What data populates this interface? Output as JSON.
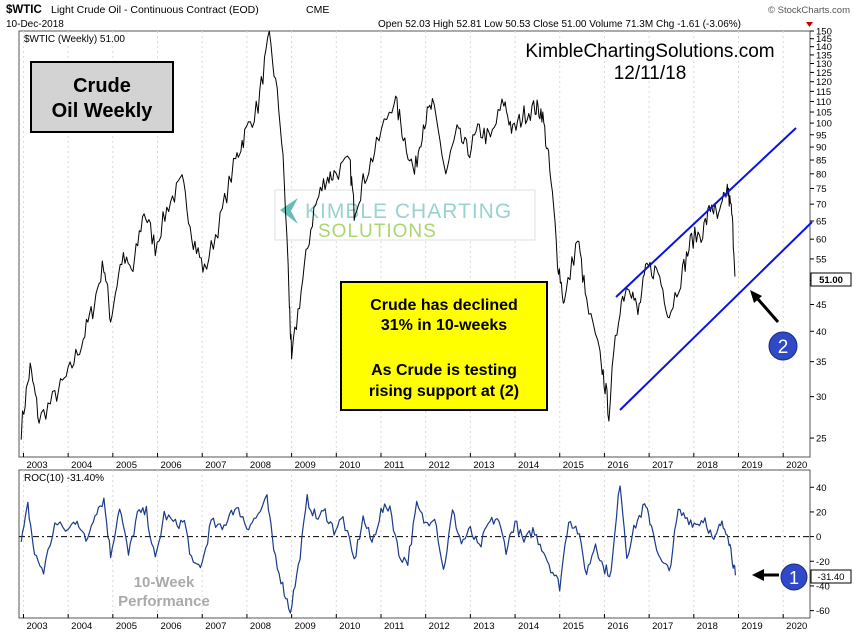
{
  "header": {
    "symbol": "$WTIC",
    "description": "Light Crude Oil - Continuous Contract (EOD)",
    "exchange": "CME",
    "date": "10-Dec-2018",
    "ohlc_text": "Open 52.03  High 52.81  Low 50.53  Close 51.00  Volume 71.3M  Chg -1.61 (-3.06%)",
    "credit": "© StockCharts.com"
  },
  "price_panel": {
    "legend": "$WTIC (Weekly) 51.00",
    "last_price_label": "51.00",
    "title_box": {
      "line1": "Crude",
      "line2": "Oil Weekly"
    },
    "site": "KimbleChartingSolutions.com",
    "site_date": "12/11/18",
    "watermark_line1": "KIMBLE CHARTING",
    "watermark_line2": "SOLUTIONS",
    "annotation": {
      "line1": "Crude has declined",
      "line2": "31% in 10-weeks",
      "line3": "As Crude is testing",
      "line4": "rising support at (2)"
    },
    "marker_label": "2"
  },
  "roc_panel": {
    "legend": "ROC(10) -31.40%",
    "last_value_label": "-31.40",
    "perf_line1": "10-Week",
    "perf_line2": "Performance",
    "marker_label": "1"
  },
  "colors": {
    "price_line": "#000000",
    "roc_line": "#1a3a8a",
    "channel": "#0a14e0",
    "annotation_bg": "#ffff00",
    "marker": "#2f49c8",
    "panel_border": "#555555"
  },
  "chart_data": [
    {
      "type": "line",
      "x_axis": "year",
      "x_ticks": [
        "2003",
        "2004",
        "2005",
        "2006",
        "2007",
        "2008",
        "2009",
        "2010",
        "2011",
        "2012",
        "2013",
        "2014",
        "2015",
        "2016",
        "2017",
        "2018",
        "2019",
        "2020"
      ],
      "y_scale": "log",
      "y_ticks": [
        25,
        30,
        35,
        40,
        45,
        50,
        55,
        60,
        65,
        70,
        75,
        80,
        85,
        90,
        95,
        100,
        105,
        110,
        115,
        120,
        125,
        130,
        135,
        140,
        145,
        150
      ],
      "ylim": [
        23,
        150
      ],
      "series": [
        {
          "points": [
            [
              2002.95,
              26
            ],
            [
              2003.15,
              34
            ],
            [
              2003.35,
              27
            ],
            [
              2003.7,
              30
            ],
            [
              2004.0,
              33
            ],
            [
              2004.3,
              38
            ],
            [
              2004.55,
              44
            ],
            [
              2004.8,
              54
            ],
            [
              2004.95,
              42
            ],
            [
              2005.2,
              55
            ],
            [
              2005.45,
              52
            ],
            [
              2005.7,
              68
            ],
            [
              2005.95,
              58
            ],
            [
              2006.25,
              70
            ],
            [
              2006.55,
              77
            ],
            [
              2006.8,
              60
            ],
            [
              2007.05,
              52
            ],
            [
              2007.4,
              65
            ],
            [
              2007.75,
              85
            ],
            [
              2007.95,
              95
            ],
            [
              2008.25,
              108
            ],
            [
              2008.5,
              145
            ],
            [
              2008.75,
              100
            ],
            [
              2008.95,
              45
            ],
            [
              2009.0,
              35
            ],
            [
              2009.25,
              50
            ],
            [
              2009.5,
              68
            ],
            [
              2009.75,
              78
            ],
            [
              2009.95,
              80
            ],
            [
              2010.3,
              84
            ],
            [
              2010.4,
              68
            ],
            [
              2010.6,
              77
            ],
            [
              2010.9,
              90
            ],
            [
              2011.3,
              112
            ],
            [
              2011.5,
              95
            ],
            [
              2011.75,
              80
            ],
            [
              2011.95,
              100
            ],
            [
              2012.15,
              108
            ],
            [
              2012.45,
              80
            ],
            [
              2012.7,
              96
            ],
            [
              2012.95,
              88
            ],
            [
              2013.2,
              97
            ],
            [
              2013.45,
              93
            ],
            [
              2013.75,
              110
            ],
            [
              2013.95,
              96
            ],
            [
              2014.2,
              104
            ],
            [
              2014.45,
              107
            ],
            [
              2014.6,
              105
            ],
            [
              2014.75,
              85
            ],
            [
              2014.95,
              55
            ],
            [
              2015.1,
              45
            ],
            [
              2015.4,
              60
            ],
            [
              2015.6,
              45
            ],
            [
              2015.95,
              34
            ],
            [
              2016.1,
              28
            ],
            [
              2016.35,
              45
            ],
            [
              2016.55,
              50
            ],
            [
              2016.75,
              43
            ],
            [
              2016.95,
              53
            ],
            [
              2017.2,
              52
            ],
            [
              2017.45,
              43
            ],
            [
              2017.75,
              52
            ],
            [
              2017.95,
              60
            ],
            [
              2018.2,
              62
            ],
            [
              2018.4,
              70
            ],
            [
              2018.55,
              65
            ],
            [
              2018.75,
              75
            ],
            [
              2018.85,
              67
            ],
            [
              2018.93,
              51
            ]
          ]
        }
      ]
    },
    {
      "type": "line",
      "x_axis": "year",
      "x_ticks": [
        "2003",
        "2004",
        "2005",
        "2006",
        "2007",
        "2008",
        "2009",
        "2010",
        "2011",
        "2012",
        "2013",
        "2014",
        "2015",
        "2016",
        "2017",
        "2018",
        "2019",
        "2020"
      ],
      "y_ticks": [
        -60,
        -40,
        -20,
        0,
        20,
        40
      ],
      "ylim": [
        -66,
        54
      ],
      "zero_line": true,
      "series": [
        {
          "points": [
            [
              2002.95,
              -5
            ],
            [
              2003.1,
              25
            ],
            [
              2003.25,
              -15
            ],
            [
              2003.45,
              -28
            ],
            [
              2003.7,
              10
            ],
            [
              2004.0,
              5
            ],
            [
              2004.2,
              15
            ],
            [
              2004.4,
              -5
            ],
            [
              2004.6,
              20
            ],
            [
              2004.8,
              30
            ],
            [
              2004.95,
              -15
            ],
            [
              2005.15,
              25
            ],
            [
              2005.35,
              -15
            ],
            [
              2005.55,
              18
            ],
            [
              2005.75,
              20
            ],
            [
              2005.95,
              -20
            ],
            [
              2006.15,
              18
            ],
            [
              2006.4,
              10
            ],
            [
              2006.6,
              12
            ],
            [
              2006.8,
              -25
            ],
            [
              2007.0,
              -22
            ],
            [
              2007.2,
              12
            ],
            [
              2007.45,
              5
            ],
            [
              2007.65,
              22
            ],
            [
              2007.85,
              20
            ],
            [
              2008.0,
              8
            ],
            [
              2008.2,
              15
            ],
            [
              2008.45,
              30
            ],
            [
              2008.6,
              -10
            ],
            [
              2008.8,
              -40
            ],
            [
              2008.97,
              -60
            ],
            [
              2009.15,
              -25
            ],
            [
              2009.35,
              30
            ],
            [
              2009.55,
              15
            ],
            [
              2009.75,
              20
            ],
            [
              2009.95,
              5
            ],
            [
              2010.15,
              15
            ],
            [
              2010.4,
              -20
            ],
            [
              2010.6,
              15
            ],
            [
              2010.8,
              -5
            ],
            [
              2011.0,
              20
            ],
            [
              2011.2,
              25
            ],
            [
              2011.4,
              -15
            ],
            [
              2011.6,
              -20
            ],
            [
              2011.8,
              25
            ],
            [
              2012.0,
              10
            ],
            [
              2012.2,
              18
            ],
            [
              2012.4,
              -28
            ],
            [
              2012.6,
              20
            ],
            [
              2012.8,
              -5
            ],
            [
              2013.0,
              5
            ],
            [
              2013.2,
              -10
            ],
            [
              2013.4,
              10
            ],
            [
              2013.6,
              15
            ],
            [
              2013.8,
              -10
            ],
            [
              2014.0,
              12
            ],
            [
              2014.2,
              -5
            ],
            [
              2014.4,
              5
            ],
            [
              2014.6,
              -8
            ],
            [
              2014.8,
              -25
            ],
            [
              2015.0,
              -40
            ],
            [
              2015.2,
              15
            ],
            [
              2015.4,
              5
            ],
            [
              2015.6,
              -30
            ],
            [
              2015.8,
              -5
            ],
            [
              2015.97,
              -25
            ],
            [
              2016.15,
              -30
            ],
            [
              2016.35,
              45
            ],
            [
              2016.5,
              -15
            ],
            [
              2016.7,
              10
            ],
            [
              2016.9,
              25
            ],
            [
              2017.05,
              10
            ],
            [
              2017.25,
              -20
            ],
            [
              2017.45,
              -28
            ],
            [
              2017.65,
              20
            ],
            [
              2017.85,
              15
            ],
            [
              2018.05,
              10
            ],
            [
              2018.25,
              15
            ],
            [
              2018.45,
              -5
            ],
            [
              2018.6,
              10
            ],
            [
              2018.75,
              5
            ],
            [
              2018.85,
              -15
            ],
            [
              2018.93,
              -31.4
            ]
          ]
        }
      ]
    }
  ]
}
